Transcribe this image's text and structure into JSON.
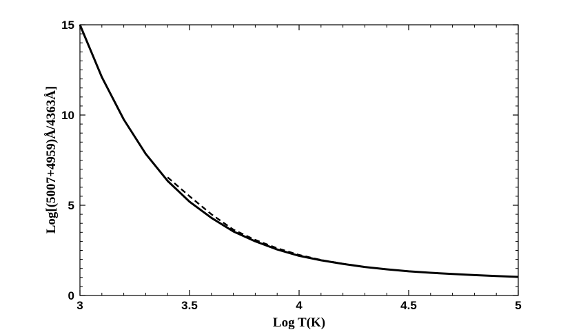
{
  "chart_data": {
    "type": "line",
    "title": "",
    "xlabel": "Log T(K)",
    "ylabel": "Log[(5007+4959)Å/4363Å]",
    "xlim": [
      3,
      5
    ],
    "ylim": [
      0,
      15
    ],
    "x_ticks": [
      {
        "value": 3,
        "label": "3"
      },
      {
        "value": 3.5,
        "label": "3.5"
      },
      {
        "value": 4,
        "label": "4"
      },
      {
        "value": 4.5,
        "label": "4.5"
      },
      {
        "value": 5,
        "label": "5"
      }
    ],
    "y_ticks": [
      {
        "value": 0,
        "label": "0"
      },
      {
        "value": 5,
        "label": "5"
      },
      {
        "value": 10,
        "label": "10"
      },
      {
        "value": 15,
        "label": "15"
      }
    ],
    "grid": false,
    "legend": "none",
    "series": [
      {
        "style": "solid",
        "color": "#000000",
        "x": [
          3.0,
          3.1,
          3.2,
          3.3,
          3.4,
          3.5,
          3.6,
          3.7,
          3.8,
          3.9,
          4.0,
          4.1,
          4.2,
          4.3,
          4.4,
          4.5,
          4.6,
          4.7,
          4.8,
          4.9,
          5.0
        ],
        "y": [
          15.0,
          12.1,
          9.75,
          7.85,
          6.35,
          5.2,
          4.3,
          3.55,
          3.0,
          2.55,
          2.2,
          1.95,
          1.75,
          1.58,
          1.45,
          1.34,
          1.26,
          1.19,
          1.13,
          1.08,
          1.03
        ]
      },
      {
        "style": "dashed",
        "color": "#000000",
        "x": [
          3.4,
          3.5,
          3.6,
          3.7,
          3.8,
          3.9,
          4.0,
          4.1,
          4.2,
          4.3
        ],
        "y": [
          6.55,
          5.5,
          4.5,
          3.65,
          3.08,
          2.62,
          2.25,
          1.97,
          1.76,
          1.58
        ]
      }
    ]
  }
}
